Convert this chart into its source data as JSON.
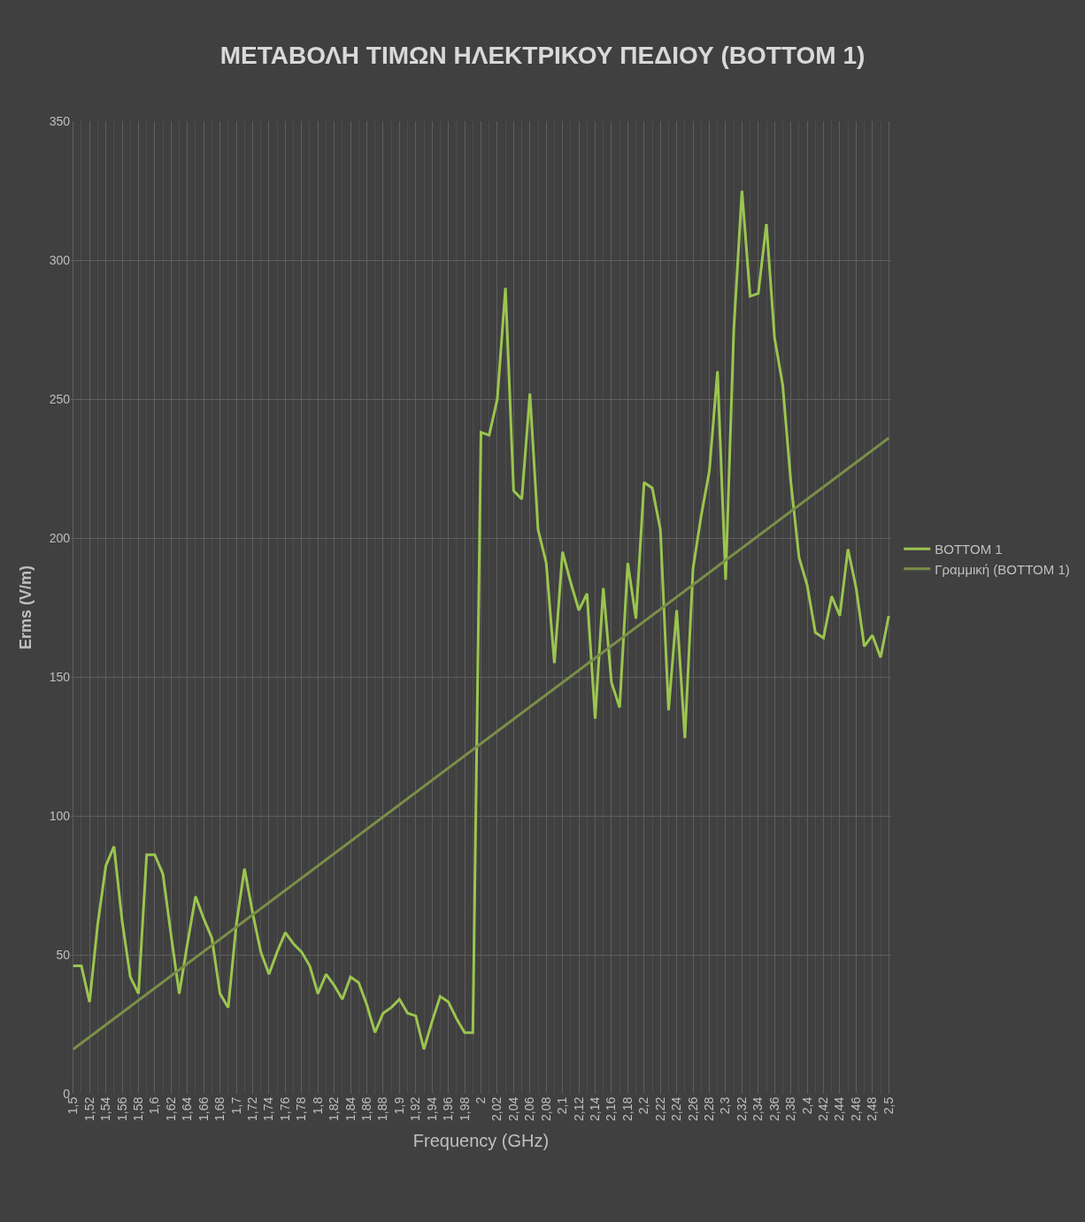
{
  "chart_data": {
    "type": "line",
    "title": "ΜΕΤΑΒΟΛΗ ΤΙΜΩΝ ΗΛΕΚΤΡΙΚΟΥ ΠΕΔΙΟΥ (BOTTOM 1)",
    "xlabel": "Frequency (GHz)",
    "ylabel": "Erms (V/m)",
    "categories": [
      "1,5",
      null,
      "1,52",
      null,
      "1,54",
      null,
      "1,56",
      null,
      "1,58",
      null,
      "1,6",
      null,
      "1,62",
      null,
      "1,64",
      null,
      "1,66",
      null,
      "1,68",
      null,
      "1,7",
      null,
      "1,72",
      null,
      "1,74",
      null,
      "1,76",
      null,
      "1,78",
      null,
      "1,8",
      null,
      "1,82",
      null,
      "1,84",
      null,
      "1,86",
      null,
      "1,88",
      null,
      "1,9",
      null,
      "1,92",
      null,
      "1,94",
      null,
      "1,96",
      null,
      "1,98",
      null,
      "2",
      null,
      "2,02",
      null,
      "2,04",
      null,
      "2,06",
      null,
      "2,08",
      null,
      "2,1",
      null,
      "2,12",
      null,
      "2,14",
      null,
      "2,16",
      null,
      "2,18",
      null,
      "2,2",
      null,
      "2,22",
      null,
      "2,24",
      null,
      "2,26",
      null,
      "2,28",
      null,
      "2,3",
      null,
      "2,32",
      null,
      "2,34",
      null,
      "2,36",
      null,
      "2,38",
      null,
      "2,4",
      null,
      "2,42",
      null,
      "2,44",
      null,
      "2,46",
      null,
      "2,48",
      null,
      "2,5"
    ],
    "series": [
      {
        "name": "BOTTOM 1",
        "color": "#9bc54f",
        "values": [
          46,
          46,
          33,
          61,
          82,
          89,
          62,
          42,
          36,
          86,
          86,
          79,
          57,
          36,
          54,
          71,
          63,
          56,
          36,
          31,
          61,
          81,
          65,
          51,
          43,
          51,
          58,
          54,
          51,
          46,
          36,
          43,
          39,
          34,
          42,
          40,
          32,
          22,
          29,
          31,
          34,
          29,
          28,
          16,
          26,
          35,
          33,
          27,
          22,
          22,
          238,
          237,
          250,
          290,
          217,
          214,
          252,
          203,
          191,
          155,
          195,
          184,
          174,
          180,
          135,
          182,
          148,
          139,
          191,
          171,
          220,
          218,
          203,
          138,
          174,
          128,
          189,
          208,
          224,
          260,
          185,
          275,
          325,
          287,
          288,
          313,
          272,
          255,
          220,
          193,
          183,
          166,
          164,
          179,
          172,
          196,
          182,
          161,
          165,
          157,
          172
        ]
      },
      {
        "name": "Γραμμική (BOTTOM 1)",
        "color": "#7a8f48",
        "x": [
          "1,5",
          "2,5"
        ],
        "values": [
          16,
          236
        ]
      }
    ],
    "ylim": [
      0,
      350
    ],
    "yticks": [
      0,
      50,
      100,
      150,
      200,
      250,
      300,
      350
    ],
    "grid": true,
    "legend": "right",
    "marker": "none",
    "line_style": "solid"
  }
}
